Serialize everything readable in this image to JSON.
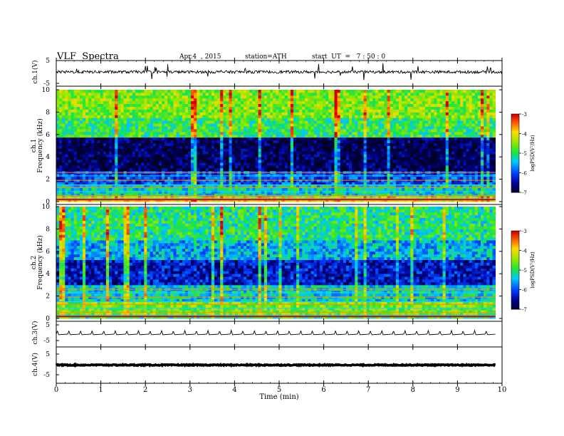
{
  "header": {
    "title": "VLF  Spectra",
    "date": "Apr.4  , 2015",
    "station": "station=ATH",
    "start": "start  UT  =   7 : 50 : 0"
  },
  "chart_data": [
    {
      "type": "line",
      "panel": "ch1-waveform",
      "ylabel": "ch.1(V)",
      "ylim": [
        -5,
        5
      ],
      "yticks": [
        "5",
        "-5"
      ],
      "xlim": [
        0,
        10
      ],
      "series": [
        {
          "values_description_hidden": true,
          "trace_kind": "noise",
          "baseline": 0,
          "amplitude": 1.2,
          "spike_amplitude": 3.5
        }
      ]
    },
    {
      "type": "heatmap",
      "panel": "ch1-spectrogram",
      "ylabel": "ch.1",
      "ylabel2": "Frequency  (kHz)",
      "ylim": [
        0,
        10
      ],
      "yticks": [
        "0",
        "2",
        "4",
        "6",
        "8",
        "10"
      ],
      "xlim": [
        0,
        9.85
      ],
      "colorbar": {
        "label": "logPSD(V²/Hz)",
        "range": [
          -7,
          -3
        ],
        "ticks": [
          "-3",
          "-4",
          "-5",
          "-6",
          "-7"
        ]
      },
      "bands": [
        {
          "from": 0,
          "to": 0.4,
          "level": -4.0
        },
        {
          "from": 0.4,
          "to": 1.6,
          "level": -5.3
        },
        {
          "from": 1.6,
          "to": 2.8,
          "level": -6.0
        },
        {
          "from": 2.8,
          "to": 5.7,
          "level": -6.8
        },
        {
          "from": 5.7,
          "to": 7.5,
          "level": -4.9
        },
        {
          "from": 7.5,
          "to": 10,
          "level": -4.5
        }
      ]
    },
    {
      "type": "heatmap",
      "panel": "ch2-spectrogram",
      "ylabel": "ch.2",
      "ylabel2": "Frequency  (kHz)",
      "ylim": [
        0,
        10
      ],
      "yticks": [
        "0",
        "2",
        "4",
        "6",
        "8",
        "10"
      ],
      "xlim": [
        0,
        9.85
      ],
      "colorbar": {
        "label": "logPSD(V²/Hz)",
        "range": [
          -7,
          -3
        ],
        "ticks": [
          "-3",
          "-4",
          "-5",
          "-6",
          "-7"
        ]
      },
      "bands": [
        {
          "from": 0,
          "to": 0.3,
          "level": -5.0
        },
        {
          "from": 0.3,
          "to": 1.6,
          "level": -4.6
        },
        {
          "from": 1.6,
          "to": 3.0,
          "level": -5.3
        },
        {
          "from": 3.0,
          "to": 5.3,
          "level": -6.3
        },
        {
          "from": 5.3,
          "to": 7.0,
          "level": -5.5
        },
        {
          "from": 7.0,
          "to": 10,
          "level": -5.0
        }
      ]
    },
    {
      "type": "line",
      "panel": "ch3-waveform",
      "ylabel": "ch.3(V)",
      "ylim": [
        -5,
        5
      ],
      "yticks": [
        "5",
        "-5"
      ],
      "xlim": [
        0,
        9.85
      ],
      "series": [
        {
          "trace_kind": "periodic",
          "period_min": 0.26,
          "amplitude": 2.5,
          "baseline": -1
        }
      ]
    },
    {
      "type": "line",
      "panel": "ch4-waveform",
      "ylabel": "ch.4(V)",
      "ylim": [
        -5,
        5
      ],
      "yticks": [
        "5",
        "-5"
      ],
      "xlim": [
        0,
        9.85
      ],
      "series": [
        {
          "trace_kind": "flat",
          "baseline": -0.3
        }
      ]
    }
  ],
  "x_axis": {
    "label": "Time  (min)",
    "ticks": [
      "0",
      "1",
      "2",
      "3",
      "4",
      "5",
      "6",
      "7",
      "8",
      "9",
      "10"
    ],
    "xlim": [
      0,
      10
    ]
  },
  "colors": {
    "background": "#ffffff",
    "axis": "#000000",
    "trace": "#000000"
  }
}
